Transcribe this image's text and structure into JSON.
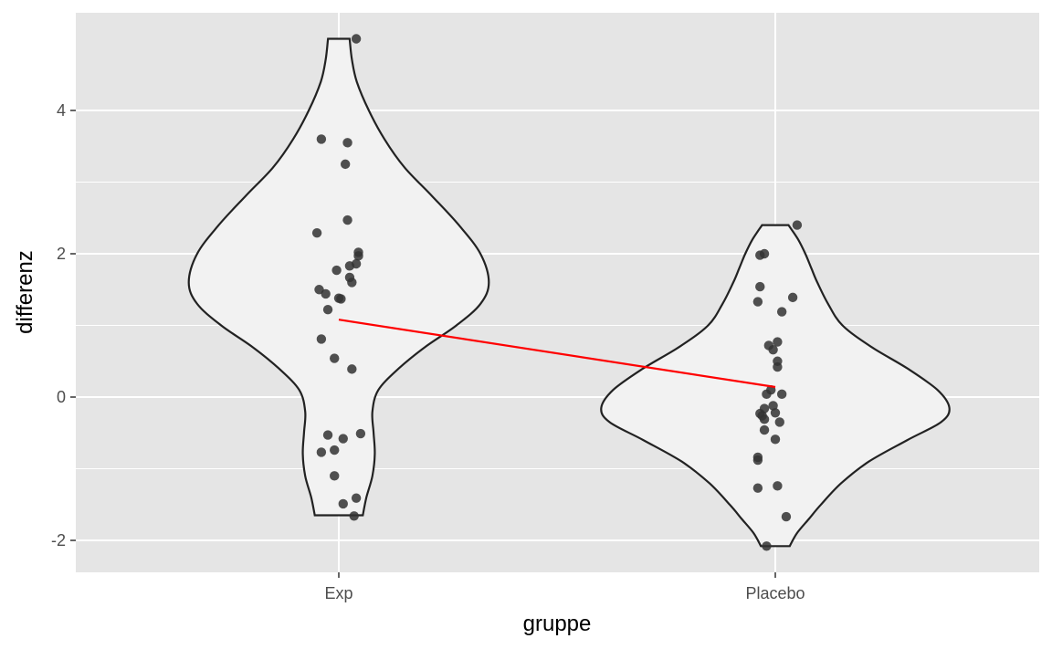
{
  "chart_data": {
    "type": "violin",
    "xlabel": "gruppe",
    "ylabel": "differenz",
    "categories": [
      "Exp",
      "Placebo"
    ],
    "ylim": [
      -2.45,
      5.2
    ],
    "yticks": [
      -2,
      0,
      2,
      4
    ],
    "ytick_labels": [
      "-2",
      "0",
      "2",
      "4"
    ],
    "grid": true,
    "colors": {
      "panel_bg": "#e5e5e5",
      "grid": "#ffffff",
      "violin_fill": "#f2f2f2",
      "violin_stroke": "#222222",
      "point": "#333333",
      "mean_line": "#ff0000"
    },
    "violins": [
      {
        "group": "Exp",
        "range": [
          -1.65,
          5.0
        ],
        "profile": [
          [
            5.0,
            0.09
          ],
          [
            4.7,
            0.11
          ],
          [
            4.4,
            0.15
          ],
          [
            4.0,
            0.25
          ],
          [
            3.6,
            0.38
          ],
          [
            3.2,
            0.55
          ],
          [
            2.8,
            0.78
          ],
          [
            2.4,
            1.0
          ],
          [
            2.0,
            1.18
          ],
          [
            1.6,
            1.25
          ],
          [
            1.3,
            1.18
          ],
          [
            1.0,
            0.98
          ],
          [
            0.7,
            0.72
          ],
          [
            0.4,
            0.5
          ],
          [
            0.1,
            0.33
          ],
          [
            -0.2,
            0.28
          ],
          [
            -0.5,
            0.29
          ],
          [
            -0.8,
            0.3
          ],
          [
            -1.1,
            0.28
          ],
          [
            -1.4,
            0.23
          ],
          [
            -1.65,
            0.2
          ]
        ]
      },
      {
        "group": "Placebo",
        "range": [
          -2.08,
          2.4
        ],
        "profile": [
          [
            2.4,
            0.11
          ],
          [
            2.2,
            0.19
          ],
          [
            2.0,
            0.25
          ],
          [
            1.8,
            0.3
          ],
          [
            1.6,
            0.35
          ],
          [
            1.3,
            0.44
          ],
          [
            1.0,
            0.56
          ],
          [
            0.7,
            0.8
          ],
          [
            0.4,
            1.1
          ],
          [
            0.1,
            1.35
          ],
          [
            -0.15,
            1.45
          ],
          [
            -0.35,
            1.38
          ],
          [
            -0.6,
            1.1
          ],
          [
            -0.9,
            0.78
          ],
          [
            -1.2,
            0.55
          ],
          [
            -1.5,
            0.38
          ],
          [
            -1.7,
            0.28
          ],
          [
            -1.9,
            0.18
          ],
          [
            -2.08,
            0.12
          ]
        ]
      }
    ],
    "points": [
      {
        "group": "Exp",
        "values": [
          {
            "dx": 0.08,
            "y": 5.0
          },
          {
            "dx": -0.08,
            "y": 3.6
          },
          {
            "dx": 0.04,
            "y": 3.55
          },
          {
            "dx": 0.03,
            "y": 3.25
          },
          {
            "dx": 0.04,
            "y": 2.47
          },
          {
            "dx": -0.1,
            "y": 2.29
          },
          {
            "dx": 0.09,
            "y": 2.02
          },
          {
            "dx": 0.09,
            "y": 1.97
          },
          {
            "dx": 0.05,
            "y": 1.83
          },
          {
            "dx": 0.08,
            "y": 1.86
          },
          {
            "dx": -0.01,
            "y": 1.77
          },
          {
            "dx": 0.05,
            "y": 1.67
          },
          {
            "dx": 0.06,
            "y": 1.6
          },
          {
            "dx": -0.09,
            "y": 1.5
          },
          {
            "dx": -0.06,
            "y": 1.44
          },
          {
            "dx": 0.0,
            "y": 1.38
          },
          {
            "dx": 0.01,
            "y": 1.37
          },
          {
            "dx": -0.05,
            "y": 1.22
          },
          {
            "dx": -0.08,
            "y": 0.81
          },
          {
            "dx": -0.02,
            "y": 0.54
          },
          {
            "dx": 0.06,
            "y": 0.39
          },
          {
            "dx": -0.05,
            "y": -0.53
          },
          {
            "dx": 0.1,
            "y": -0.51
          },
          {
            "dx": 0.02,
            "y": -0.58
          },
          {
            "dx": -0.02,
            "y": -0.74
          },
          {
            "dx": -0.08,
            "y": -0.77
          },
          {
            "dx": -0.02,
            "y": -1.1
          },
          {
            "dx": 0.02,
            "y": -1.49
          },
          {
            "dx": 0.08,
            "y": -1.41
          },
          {
            "dx": 0.07,
            "y": -1.66
          }
        ]
      },
      {
        "group": "Placebo",
        "values": [
          {
            "dx": 0.1,
            "y": 2.4
          },
          {
            "dx": -0.07,
            "y": 1.98
          },
          {
            "dx": -0.05,
            "y": 2.0
          },
          {
            "dx": -0.07,
            "y": 1.54
          },
          {
            "dx": 0.08,
            "y": 1.39
          },
          {
            "dx": -0.08,
            "y": 1.33
          },
          {
            "dx": 0.03,
            "y": 1.19
          },
          {
            "dx": 0.01,
            "y": 0.77
          },
          {
            "dx": -0.03,
            "y": 0.72
          },
          {
            "dx": -0.01,
            "y": 0.66
          },
          {
            "dx": 0.01,
            "y": 0.5
          },
          {
            "dx": 0.01,
            "y": 0.42
          },
          {
            "dx": -0.02,
            "y": 0.1
          },
          {
            "dx": 0.03,
            "y": 0.04
          },
          {
            "dx": -0.04,
            "y": 0.04
          },
          {
            "dx": -0.01,
            "y": -0.12
          },
          {
            "dx": -0.05,
            "y": -0.16
          },
          {
            "dx": 0.0,
            "y": -0.22
          },
          {
            "dx": -0.07,
            "y": -0.23
          },
          {
            "dx": -0.06,
            "y": -0.26
          },
          {
            "dx": -0.05,
            "y": -0.31
          },
          {
            "dx": 0.02,
            "y": -0.35
          },
          {
            "dx": -0.05,
            "y": -0.46
          },
          {
            "dx": 0.0,
            "y": -0.59
          },
          {
            "dx": -0.08,
            "y": -0.84
          },
          {
            "dx": -0.08,
            "y": -0.88
          },
          {
            "dx": 0.01,
            "y": -1.24
          },
          {
            "dx": -0.08,
            "y": -1.27
          },
          {
            "dx": 0.05,
            "y": -1.67
          },
          {
            "dx": -0.04,
            "y": -2.08
          }
        ]
      }
    ],
    "mean_line": {
      "x": [
        "Exp",
        "Placebo"
      ],
      "y": [
        1.08,
        0.14
      ]
    }
  }
}
